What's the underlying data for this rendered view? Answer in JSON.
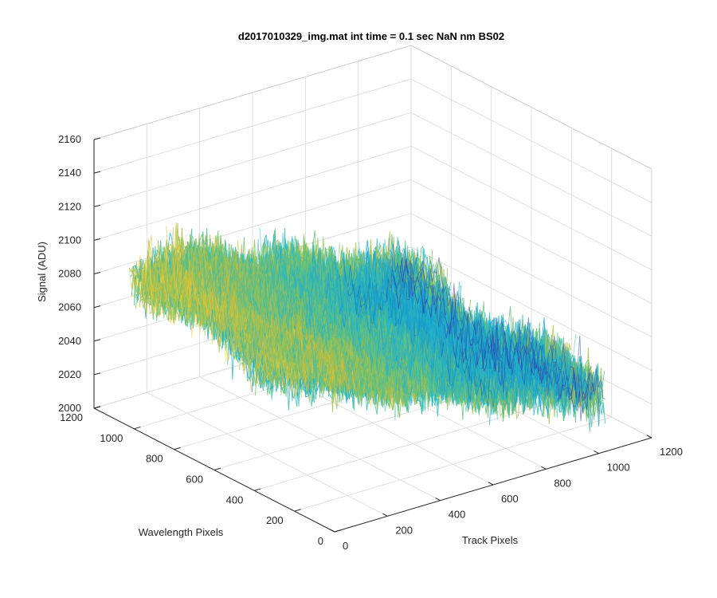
{
  "chart_data": {
    "type": "surface",
    "title": "d2017010329_img.mat int time = 0.1 sec  NaN nm BS02",
    "xlabel": "Track Pixels",
    "ylabel": "Wavelength Pixels",
    "zlabel": "Signal (ADU)",
    "xlim": [
      0,
      1200
    ],
    "ylim": [
      0,
      1200
    ],
    "zlim": [
      2000,
      2160
    ],
    "xticks": [
      "0",
      "200",
      "400",
      "600",
      "800",
      "1000",
      "1200"
    ],
    "yticks": [
      "0",
      "200",
      "400",
      "600",
      "800",
      "1000",
      "1200"
    ],
    "zticks": [
      "2000",
      "2020",
      "2040",
      "2060",
      "2080",
      "2100",
      "2120",
      "2140",
      "2160"
    ],
    "grid": true,
    "data_extent": {
      "track_pixels": [
        0,
        1024
      ],
      "wavelength_pixels": [
        0,
        1024
      ]
    },
    "signal_profile": {
      "description": "noisy surface, higher signal at low track pixels, lower at high track pixels",
      "mean_at_track_0": 2090,
      "mean_at_track_1024": 2035,
      "noise_amplitude": 30
    },
    "colormap": [
      "#3e26a8",
      "#0072bd",
      "#1aa3d9",
      "#23b9c9",
      "#4fc08d",
      "#9bc44a",
      "#e0b832",
      "#f5c935",
      "#f9fb0e"
    ]
  }
}
